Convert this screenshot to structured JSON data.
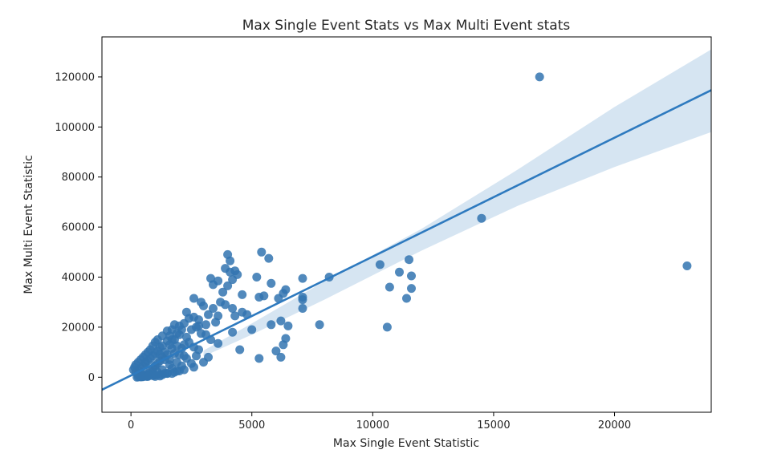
{
  "chart_data": {
    "type": "scatter",
    "title": "Max Single Event Stats vs Max Multi Event stats",
    "xlabel": "Max Single Event Statistic",
    "ylabel": "Max Multi Event Statistic",
    "xlim": [
      -1200,
      24000
    ],
    "ylim": [
      -14000,
      136000
    ],
    "xticks": [
      0,
      5000,
      10000,
      15000,
      20000
    ],
    "yticks": [
      0,
      20000,
      40000,
      60000,
      80000,
      100000,
      120000
    ],
    "xtick_labels": [
      "0",
      "5000",
      "10000",
      "15000",
      "20000"
    ],
    "ytick_labels": [
      "0",
      "20000",
      "40000",
      "60000",
      "80000",
      "100000",
      "120000"
    ],
    "grid": false,
    "colors": {
      "points": "#3274b0",
      "line": "#2e7abf",
      "band": "#c8dcee"
    },
    "regression": {
      "x": [
        -1200,
        24000
      ],
      "y": [
        -5000,
        114700
      ]
    },
    "confidence_band": {
      "x": [
        3000,
        5000,
        8000,
        12000,
        16000,
        20000,
        24000
      ],
      "upper": [
        10600,
        21500,
        38300,
        59200,
        83000,
        108000,
        131000
      ],
      "lower": [
        8300,
        17000,
        31000,
        50500,
        68500,
        84000,
        98000
      ]
    },
    "series": [
      {
        "x": [
          16900,
          23000,
          14500,
          11500,
          10300,
          11100,
          11600,
          11600,
          10700,
          11400,
          10600,
          8200,
          7800,
          7100,
          7100,
          7100,
          7100,
          5400,
          5700,
          4000,
          4100,
          4300,
          4200,
          4000,
          4400,
          3900,
          4200,
          4600,
          5300,
          5500,
          5800,
          6100,
          6300,
          6400,
          5200,
          5800,
          6200,
          6300,
          6400,
          6500,
          6200,
          5300,
          6000,
          4500,
          4600,
          4800,
          5000,
          4300,
          3300,
          3600,
          3400,
          3900,
          4100,
          2900,
          3200,
          3400,
          3700,
          2800,
          3100,
          3600,
          2600,
          3000,
          3800,
          2800,
          3500,
          4200,
          3100,
          3300,
          3600,
          3200,
          2300,
          2600,
          2900,
          2500,
          2700,
          2200,
          2400,
          2000,
          2300,
          1800,
          2100,
          1700,
          1900,
          2000,
          2200,
          1600,
          1800,
          2100,
          2400,
          2600,
          2800,
          1500,
          1700,
          1900,
          1300,
          1500,
          1700,
          2000,
          1100,
          1300,
          1600,
          1000,
          1200,
          1400,
          1800,
          2200,
          900,
          1100,
          1500,
          800,
          1000,
          1300,
          1600,
          700,
          900,
          1200,
          600,
          800,
          1100,
          500,
          700,
          1000,
          400,
          600,
          900,
          300,
          500,
          800,
          200,
          400,
          700,
          150,
          350,
          600,
          100,
          300,
          500,
          200,
          400,
          300,
          1200,
          1400,
          1600,
          1900,
          2300,
          2700,
          3000,
          1000,
          1300,
          1700,
          2100,
          2500,
          900,
          1500,
          1900,
          2200,
          2600,
          800,
          1100,
          1400,
          1800,
          600,
          900,
          1200,
          1500,
          2000,
          500,
          700,
          1000,
          1300,
          1700,
          400,
          650,
          900,
          1200,
          300,
          500,
          750,
          1000,
          250,
          450,
          700,
          600
        ],
        "y": [
          120000,
          44500,
          63500,
          47000,
          45000,
          42000,
          40500,
          35500,
          36000,
          31500,
          20000,
          40000,
          21000,
          39500,
          32000,
          27500,
          31000,
          50000,
          47500,
          49000,
          46500,
          42500,
          39000,
          36500,
          41000,
          29000,
          27500,
          33000,
          32000,
          32500,
          37500,
          31500,
          33500,
          35000,
          40000,
          21000,
          22500,
          13000,
          15500,
          20500,
          8000,
          7500,
          10500,
          11000,
          26000,
          25000,
          19000,
          24500,
          39500,
          38500,
          37000,
          43500,
          42000,
          30000,
          25000,
          27500,
          30000,
          23000,
          21000,
          24500,
          31500,
          28500,
          34000,
          20500,
          22000,
          18000,
          17000,
          15000,
          13500,
          8000,
          26000,
          24000,
          17500,
          19000,
          20000,
          21500,
          23500,
          17000,
          16000,
          21000,
          19000,
          19000,
          17500,
          20500,
          13000,
          16500,
          15000,
          11500,
          14000,
          12000,
          11000,
          18500,
          15000,
          12500,
          16500,
          14500,
          11500,
          9000,
          15000,
          12500,
          13000,
          14000,
          12000,
          10000,
          9500,
          8500,
          12500,
          10500,
          9000,
          11000,
          9500,
          8000,
          7000,
          10000,
          8500,
          6500,
          9000,
          7500,
          5500,
          8000,
          6500,
          4500,
          7000,
          5500,
          3500,
          6000,
          4500,
          2500,
          5000,
          3500,
          1500,
          4000,
          2500,
          1000,
          3000,
          1500,
          500,
          2000,
          500,
          1000,
          9000,
          7000,
          5000,
          6000,
          7500,
          8500,
          6000,
          4500,
          3000,
          3500,
          4500,
          5500,
          2000,
          1500,
          2500,
          3000,
          4000,
          1000,
          2000,
          1500,
          2000,
          500,
          1000,
          1000,
          1500,
          2500,
          200,
          500,
          800,
          1000,
          1500,
          100,
          300,
          600,
          500,
          200,
          400,
          700,
          300,
          0,
          200,
          300,
          6000
        ]
      }
    ]
  }
}
